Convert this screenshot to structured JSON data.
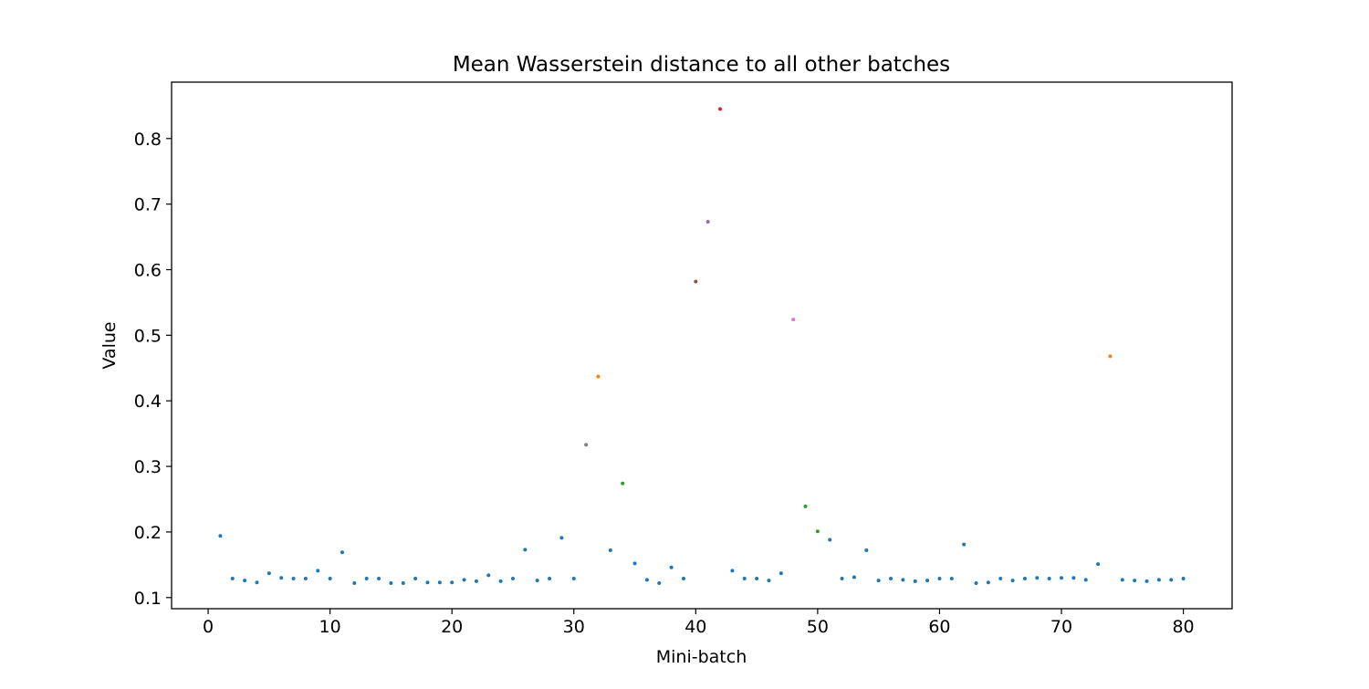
{
  "chart_data": {
    "type": "scatter",
    "title": "Mean Wasserstein distance to all other batches",
    "xlabel": "Mini-batch",
    "ylabel": "Value",
    "xlim": [
      -3,
      84
    ],
    "ylim": [
      0.083,
      0.886
    ],
    "xticks": [
      0,
      10,
      20,
      30,
      40,
      50,
      60,
      70,
      80
    ],
    "yticks": [
      0.1,
      0.2,
      0.3,
      0.4,
      0.5,
      0.6,
      0.7,
      0.8
    ],
    "grid": false,
    "legend": false,
    "points": [
      {
        "x": 1,
        "y": 0.194,
        "color": "#1f77b4"
      },
      {
        "x": 2,
        "y": 0.129,
        "color": "#1f77b4"
      },
      {
        "x": 3,
        "y": 0.126,
        "color": "#1f77b4"
      },
      {
        "x": 4,
        "y": 0.123,
        "color": "#1f77b4"
      },
      {
        "x": 5,
        "y": 0.137,
        "color": "#1f77b4"
      },
      {
        "x": 6,
        "y": 0.13,
        "color": "#1f77b4"
      },
      {
        "x": 7,
        "y": 0.129,
        "color": "#1f77b4"
      },
      {
        "x": 8,
        "y": 0.129,
        "color": "#1f77b4"
      },
      {
        "x": 9,
        "y": 0.141,
        "color": "#1f77b4"
      },
      {
        "x": 10,
        "y": 0.129,
        "color": "#1f77b4"
      },
      {
        "x": 11,
        "y": 0.169,
        "color": "#1f77b4"
      },
      {
        "x": 12,
        "y": 0.122,
        "color": "#1f77b4"
      },
      {
        "x": 13,
        "y": 0.129,
        "color": "#1f77b4"
      },
      {
        "x": 14,
        "y": 0.129,
        "color": "#1f77b4"
      },
      {
        "x": 15,
        "y": 0.122,
        "color": "#1f77b4"
      },
      {
        "x": 16,
        "y": 0.122,
        "color": "#1f77b4"
      },
      {
        "x": 17,
        "y": 0.129,
        "color": "#1f77b4"
      },
      {
        "x": 18,
        "y": 0.123,
        "color": "#1f77b4"
      },
      {
        "x": 19,
        "y": 0.123,
        "color": "#1f77b4"
      },
      {
        "x": 20,
        "y": 0.123,
        "color": "#1f77b4"
      },
      {
        "x": 21,
        "y": 0.127,
        "color": "#1f77b4"
      },
      {
        "x": 22,
        "y": 0.125,
        "color": "#1f77b4"
      },
      {
        "x": 23,
        "y": 0.134,
        "color": "#1f77b4"
      },
      {
        "x": 24,
        "y": 0.125,
        "color": "#1f77b4"
      },
      {
        "x": 25,
        "y": 0.129,
        "color": "#1f77b4"
      },
      {
        "x": 26,
        "y": 0.173,
        "color": "#1f77b4"
      },
      {
        "x": 27,
        "y": 0.126,
        "color": "#1f77b4"
      },
      {
        "x": 28,
        "y": 0.129,
        "color": "#1f77b4"
      },
      {
        "x": 29,
        "y": 0.191,
        "color": "#1f77b4"
      },
      {
        "x": 30,
        "y": 0.129,
        "color": "#1f77b4"
      },
      {
        "x": 31,
        "y": 0.333,
        "color": "#7f7f7f"
      },
      {
        "x": 32,
        "y": 0.437,
        "color": "#ff7f0e"
      },
      {
        "x": 33,
        "y": 0.172,
        "color": "#1f77b4"
      },
      {
        "x": 34,
        "y": 0.274,
        "color": "#2ca02c"
      },
      {
        "x": 35,
        "y": 0.152,
        "color": "#1f77b4"
      },
      {
        "x": 36,
        "y": 0.127,
        "color": "#1f77b4"
      },
      {
        "x": 37,
        "y": 0.122,
        "color": "#1f77b4"
      },
      {
        "x": 38,
        "y": 0.146,
        "color": "#1f77b4"
      },
      {
        "x": 39,
        "y": 0.129,
        "color": "#1f77b4"
      },
      {
        "x": 40,
        "y": 0.582,
        "color": "#8c564b"
      },
      {
        "x": 41,
        "y": 0.673,
        "color": "#9467bd"
      },
      {
        "x": 42,
        "y": 0.845,
        "color": "#d62728"
      },
      {
        "x": 43,
        "y": 0.141,
        "color": "#1f77b4"
      },
      {
        "x": 44,
        "y": 0.129,
        "color": "#1f77b4"
      },
      {
        "x": 45,
        "y": 0.129,
        "color": "#1f77b4"
      },
      {
        "x": 46,
        "y": 0.126,
        "color": "#1f77b4"
      },
      {
        "x": 47,
        "y": 0.137,
        "color": "#1f77b4"
      },
      {
        "x": 48,
        "y": 0.524,
        "color": "#e377c2"
      },
      {
        "x": 49,
        "y": 0.239,
        "color": "#2ca02c"
      },
      {
        "x": 50,
        "y": 0.201,
        "color": "#2ca02c"
      },
      {
        "x": 51,
        "y": 0.188,
        "color": "#1f77b4"
      },
      {
        "x": 52,
        "y": 0.129,
        "color": "#1f77b4"
      },
      {
        "x": 53,
        "y": 0.131,
        "color": "#1f77b4"
      },
      {
        "x": 54,
        "y": 0.172,
        "color": "#1f77b4"
      },
      {
        "x": 55,
        "y": 0.126,
        "color": "#1f77b4"
      },
      {
        "x": 56,
        "y": 0.129,
        "color": "#1f77b4"
      },
      {
        "x": 57,
        "y": 0.127,
        "color": "#1f77b4"
      },
      {
        "x": 58,
        "y": 0.125,
        "color": "#1f77b4"
      },
      {
        "x": 59,
        "y": 0.126,
        "color": "#1f77b4"
      },
      {
        "x": 60,
        "y": 0.129,
        "color": "#1f77b4"
      },
      {
        "x": 61,
        "y": 0.129,
        "color": "#1f77b4"
      },
      {
        "x": 62,
        "y": 0.181,
        "color": "#1f77b4"
      },
      {
        "x": 63,
        "y": 0.122,
        "color": "#1f77b4"
      },
      {
        "x": 64,
        "y": 0.123,
        "color": "#1f77b4"
      },
      {
        "x": 65,
        "y": 0.129,
        "color": "#1f77b4"
      },
      {
        "x": 66,
        "y": 0.126,
        "color": "#1f77b4"
      },
      {
        "x": 67,
        "y": 0.129,
        "color": "#1f77b4"
      },
      {
        "x": 68,
        "y": 0.13,
        "color": "#1f77b4"
      },
      {
        "x": 69,
        "y": 0.129,
        "color": "#1f77b4"
      },
      {
        "x": 70,
        "y": 0.13,
        "color": "#1f77b4"
      },
      {
        "x": 71,
        "y": 0.13,
        "color": "#1f77b4"
      },
      {
        "x": 72,
        "y": 0.127,
        "color": "#1f77b4"
      },
      {
        "x": 73,
        "y": 0.151,
        "color": "#1f77b4"
      },
      {
        "x": 74,
        "y": 0.468,
        "color": "#ff7f0e"
      },
      {
        "x": 75,
        "y": 0.127,
        "color": "#1f77b4"
      },
      {
        "x": 76,
        "y": 0.126,
        "color": "#1f77b4"
      },
      {
        "x": 77,
        "y": 0.125,
        "color": "#1f77b4"
      },
      {
        "x": 78,
        "y": 0.127,
        "color": "#1f77b4"
      },
      {
        "x": 79,
        "y": 0.127,
        "color": "#1f77b4"
      },
      {
        "x": 80,
        "y": 0.129,
        "color": "#1f77b4"
      }
    ]
  }
}
